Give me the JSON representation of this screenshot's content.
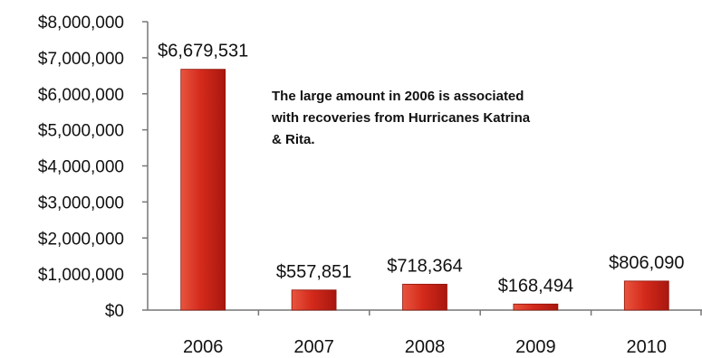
{
  "chart_data": {
    "type": "bar",
    "categories": [
      "2006",
      "2007",
      "2008",
      "2009",
      "2010"
    ],
    "values": [
      6679531,
      557851,
      718364,
      168494,
      806090
    ],
    "data_labels": [
      "$6,679,531",
      "$557,851",
      "$718,364",
      "$168,494",
      "$806,090"
    ],
    "y_ticks": [
      0,
      1000000,
      2000000,
      3000000,
      4000000,
      5000000,
      6000000,
      7000000,
      8000000
    ],
    "y_tick_labels": [
      "$0",
      "$1,000,000",
      "$2,000,000",
      "$3,000,000",
      "$4,000,000",
      "$5,000,000",
      "$6,000,000",
      "$7,000,000",
      "$8,000,000"
    ],
    "ylim": [
      0,
      8000000
    ],
    "title": "",
    "xlabel": "",
    "ylabel": "",
    "grid": false,
    "legend": "none",
    "bar_color": "#d42a1c",
    "annotation": {
      "lines": [
        "The large amount in 2006 is associated",
        "with recoveries from Hurricanes Katrina",
        "& Rita."
      ]
    }
  }
}
